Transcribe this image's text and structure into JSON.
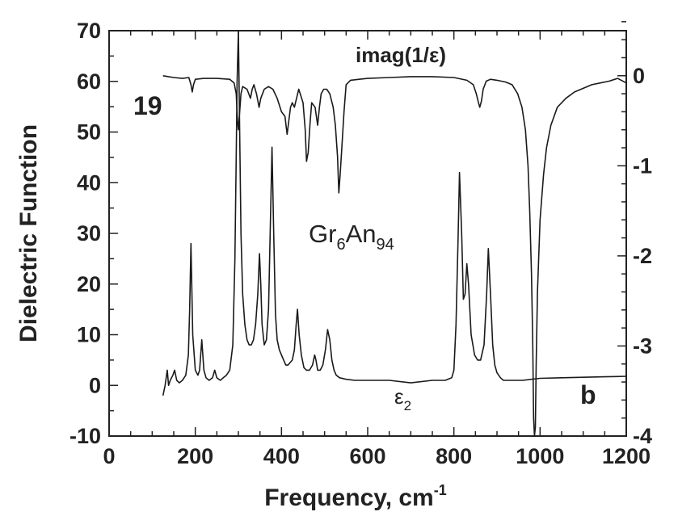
{
  "chart_data": {
    "type": "line",
    "xlabel": "Frequency, cm",
    "xlabel_sup": "-1",
    "ylabel": "Dielectric Function",
    "xlim": [
      0,
      1200
    ],
    "ylim": [
      -10,
      70
    ],
    "y2lim": [
      -4,
      0.5
    ],
    "x_ticks": [
      0,
      200,
      400,
      600,
      800,
      1000,
      1200
    ],
    "y_ticks": [
      -10,
      0,
      10,
      20,
      30,
      40,
      50,
      60,
      70
    ],
    "y2_ticks": [
      0,
      -1,
      -2,
      -3,
      -4
    ],
    "x_tick_labels": [
      "0",
      "200",
      "400",
      "600",
      "800",
      "1000",
      "1200"
    ],
    "y_tick_labels": [
      "-10",
      "0",
      "10",
      "20",
      "30",
      "40",
      "50",
      "60",
      "70"
    ],
    "y2_tick_labels": [
      "0",
      "-1",
      "-2",
      "-3",
      "-4"
    ],
    "grid": false,
    "annotations": {
      "panel_number": "19",
      "panel_letter": "b",
      "sample_main": "Gr",
      "sample_sub1": "6",
      "sample_mid": "An",
      "sample_sub2": "94",
      "imag_label": "imag(1/ε)",
      "eps_label": "ε",
      "eps_sub": "2"
    },
    "series": [
      {
        "label": "ε2",
        "axis": "left",
        "x": [
          125,
          130,
          135,
          138,
          142,
          148,
          152,
          157,
          163,
          170,
          178,
          184,
          187,
          190,
          194,
          200,
          206,
          210,
          215,
          220,
          225,
          232,
          240,
          245,
          250,
          258,
          265,
          272,
          280,
          287,
          292,
          295,
          297,
          300,
          303,
          306,
          310,
          315,
          320,
          325,
          330,
          335,
          340,
          345,
          349,
          352,
          355,
          360,
          365,
          370,
          375,
          378,
          382,
          386,
          390,
          395,
          400,
          405,
          410,
          415,
          420,
          425,
          430,
          434,
          437,
          441,
          446,
          452,
          458,
          465,
          472,
          477,
          480,
          484,
          490,
          496,
          502,
          507,
          512,
          517,
          522,
          527,
          535,
          550,
          570,
          600,
          650,
          700,
          750,
          780,
          795,
          800,
          805,
          810,
          813,
          818,
          822,
          826,
          830,
          834,
          840,
          848,
          855,
          862,
          870,
          876,
          880,
          885,
          890,
          895,
          900,
          908,
          915,
          925,
          940,
          960,
          980,
          1000,
          1050,
          1100,
          1150,
          1200
        ],
        "y": [
          -2,
          0,
          3,
          0,
          1,
          2,
          3,
          1,
          0.5,
          1,
          2,
          6,
          15,
          28,
          10,
          3,
          2,
          3,
          9,
          3,
          1.5,
          1,
          1.5,
          3,
          1.5,
          1,
          1.5,
          2,
          3,
          8,
          25,
          45,
          60,
          70,
          50,
          30,
          18,
          12,
          9,
          8,
          8,
          9,
          12,
          18,
          26,
          20,
          12,
          8,
          9,
          15,
          35,
          47,
          30,
          14,
          9,
          7,
          6,
          5,
          4,
          4,
          4.5,
          5,
          7,
          12,
          15,
          10,
          6,
          3.5,
          3,
          3,
          4,
          6,
          5,
          3,
          3,
          4,
          7,
          11,
          9,
          5,
          3,
          2,
          1.5,
          1.2,
          1,
          1,
          1,
          0.5,
          1,
          1,
          1.5,
          3,
          12,
          30,
          42,
          30,
          17,
          18,
          24,
          20,
          10,
          6,
          5,
          5,
          8,
          18,
          27,
          18,
          8,
          4,
          2.5,
          1.5,
          1,
          1,
          1,
          1,
          1.2,
          1.4,
          1.5,
          1.6,
          1.7,
          1.8
        ]
      },
      {
        "label": "imag(1/ε)",
        "axis": "right",
        "x": [
          125,
          150,
          170,
          185,
          190,
          193,
          196,
          200,
          220,
          250,
          280,
          290,
          295,
          298,
          300,
          303,
          306,
          310,
          320,
          328,
          332,
          336,
          342,
          348,
          352,
          356,
          360,
          370,
          380,
          390,
          400,
          408,
          413,
          417,
          421,
          425,
          430,
          440,
          450,
          455,
          458,
          462,
          466,
          470,
          478,
          484,
          488,
          492,
          498,
          505,
          512,
          520,
          525,
          530,
          533,
          536,
          540,
          545,
          550,
          560,
          580,
          600,
          650,
          700,
          750,
          800,
          830,
          845,
          852,
          857,
          860,
          864,
          868,
          875,
          885,
          900,
          920,
          935,
          948,
          958,
          966,
          972,
          976,
          980,
          983,
          985,
          987,
          989,
          991,
          994,
          1000,
          1008,
          1015,
          1025,
          1040,
          1060,
          1080,
          1100,
          1120,
          1140,
          1160,
          1180,
          1200
        ],
        "y": [
          0,
          -0.02,
          -0.03,
          -0.02,
          -0.1,
          -0.18,
          -0.1,
          -0.04,
          -0.03,
          -0.03,
          -0.04,
          -0.08,
          -0.2,
          -0.5,
          -0.6,
          -0.4,
          -0.2,
          -0.12,
          -0.15,
          -0.25,
          -0.15,
          -0.1,
          -0.2,
          -0.35,
          -0.25,
          -0.2,
          -0.15,
          -0.12,
          -0.15,
          -0.25,
          -0.4,
          -0.45,
          -0.65,
          -0.5,
          -0.35,
          -0.3,
          -0.35,
          -0.15,
          -0.3,
          -0.6,
          -0.95,
          -0.85,
          -0.55,
          -0.3,
          -0.35,
          -0.55,
          -0.35,
          -0.2,
          -0.15,
          -0.15,
          -0.2,
          -0.35,
          -0.55,
          -0.9,
          -1.3,
          -1.1,
          -0.8,
          -0.4,
          -0.1,
          -0.05,
          -0.04,
          -0.03,
          -0.02,
          -0.01,
          -0.01,
          -0.02,
          -0.05,
          -0.1,
          -0.2,
          -0.3,
          -0.35,
          -0.28,
          -0.15,
          -0.06,
          -0.04,
          -0.05,
          -0.07,
          -0.1,
          -0.2,
          -0.35,
          -0.6,
          -1.0,
          -1.5,
          -2.2,
          -3.0,
          -3.8,
          -4.0,
          -3.9,
          -3.2,
          -2.4,
          -1.6,
          -1.1,
          -0.8,
          -0.55,
          -0.35,
          -0.25,
          -0.18,
          -0.14,
          -0.1,
          -0.08,
          -0.06,
          -0.03,
          -0.08
        ]
      }
    ]
  }
}
